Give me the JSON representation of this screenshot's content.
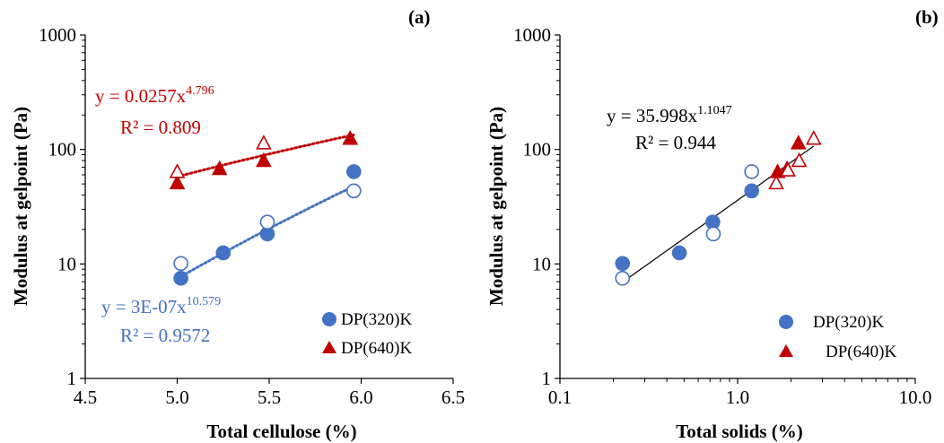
{
  "chart_data": [
    {
      "type": "scatter",
      "panel_label": "(a)",
      "xlabel": "Total cellulose (%)",
      "ylabel": "Modulus at gelpoint (Pa)",
      "xlim": [
        4.5,
        6.5
      ],
      "ylim": [
        1,
        1000
      ],
      "yscale": "log",
      "x_ticks": [
        "4.5",
        "5.0",
        "5.5",
        "6.0",
        "6.5"
      ],
      "y_ticks": [
        "1",
        "10",
        "100",
        "1000"
      ],
      "grid": false,
      "legend_position": "bottom-right",
      "colors": {
        "dp320": "#4472c4",
        "dp640": "#c00000"
      },
      "series": [
        {
          "name": "DP(320)K",
          "marker": "circle",
          "filled": true,
          "x": [
            5.02,
            5.25,
            5.49,
            5.96
          ],
          "y": [
            7.5,
            12.5,
            18.3,
            64
          ]
        },
        {
          "marker": "circle",
          "filled": false,
          "x": [
            5.02,
            5.49,
            5.96
          ],
          "y": [
            10.1,
            23.2,
            43.5
          ]
        },
        {
          "name": "DP(640)K",
          "marker": "triangle",
          "filled": true,
          "x": [
            5.0,
            5.23,
            5.47,
            5.94
          ],
          "y": [
            51,
            68,
            80,
            125
          ]
        },
        {
          "marker": "triangle",
          "filled": false,
          "x": [
            5.0,
            5.47
          ],
          "y": [
            64,
            114
          ]
        }
      ],
      "trendlines": [
        {
          "series": "DP(320)K",
          "style": "dotted",
          "coef": 3e-07,
          "exp": 10.579,
          "x_range": [
            5.0,
            5.96
          ],
          "eq_main": "y = 3E-07x",
          "eq_exp": "10.579",
          "r2": "R² = 0.9572"
        },
        {
          "series": "DP(640)K",
          "style": "dotted",
          "coef": 0.0257,
          "exp": 4.796,
          "x_range": [
            5.0,
            5.96
          ],
          "eq_main": "y = 0.0257x",
          "eq_exp": "4.796",
          "r2": "R² = 0.809"
        }
      ]
    },
    {
      "type": "scatter",
      "panel_label": "(b)",
      "xlabel": "Total solids (%)",
      "ylabel": "Modulus at gelpoint (Pa)",
      "xlim": [
        0.1,
        10.0
      ],
      "ylim": [
        1,
        1000
      ],
      "xscale": "log",
      "yscale": "log",
      "x_ticks": [
        "0.1",
        "1.0",
        "10.0"
      ],
      "y_ticks": [
        "1",
        "10",
        "100",
        "1000"
      ],
      "grid": false,
      "legend_position": "bottom-right",
      "colors": {
        "dp320": "#4472c4",
        "dp640": "#c00000",
        "fit": "#000000"
      },
      "series": [
        {
          "name": "DP(320)K",
          "marker": "circle",
          "filled": true,
          "x": [
            0.225,
            0.47,
            0.725,
            1.2
          ],
          "y": [
            10.1,
            12.5,
            23.2,
            43.5
          ]
        },
        {
          "marker": "circle",
          "filled": false,
          "x": [
            0.225,
            0.73,
            1.2
          ],
          "y": [
            7.5,
            18.3,
            64
          ]
        },
        {
          "name": "DP(640)K",
          "marker": "triangle",
          "filled": true,
          "x": [
            1.68,
            1.9,
            2.2
          ],
          "y": [
            64,
            68,
            114
          ]
        },
        {
          "marker": "triangle",
          "filled": false,
          "x": [
            1.65,
            1.92,
            2.22,
            2.68
          ],
          "y": [
            51,
            66,
            80,
            125
          ]
        }
      ],
      "trendlines": [
        {
          "series": "all",
          "style": "solid",
          "coef": 35.998,
          "exp": 1.1047,
          "x_range": [
            0.225,
            2.68
          ],
          "eq_main": "y = 35.998x",
          "eq_exp": "1.1047",
          "r2": "R² = 0.944"
        }
      ]
    }
  ]
}
